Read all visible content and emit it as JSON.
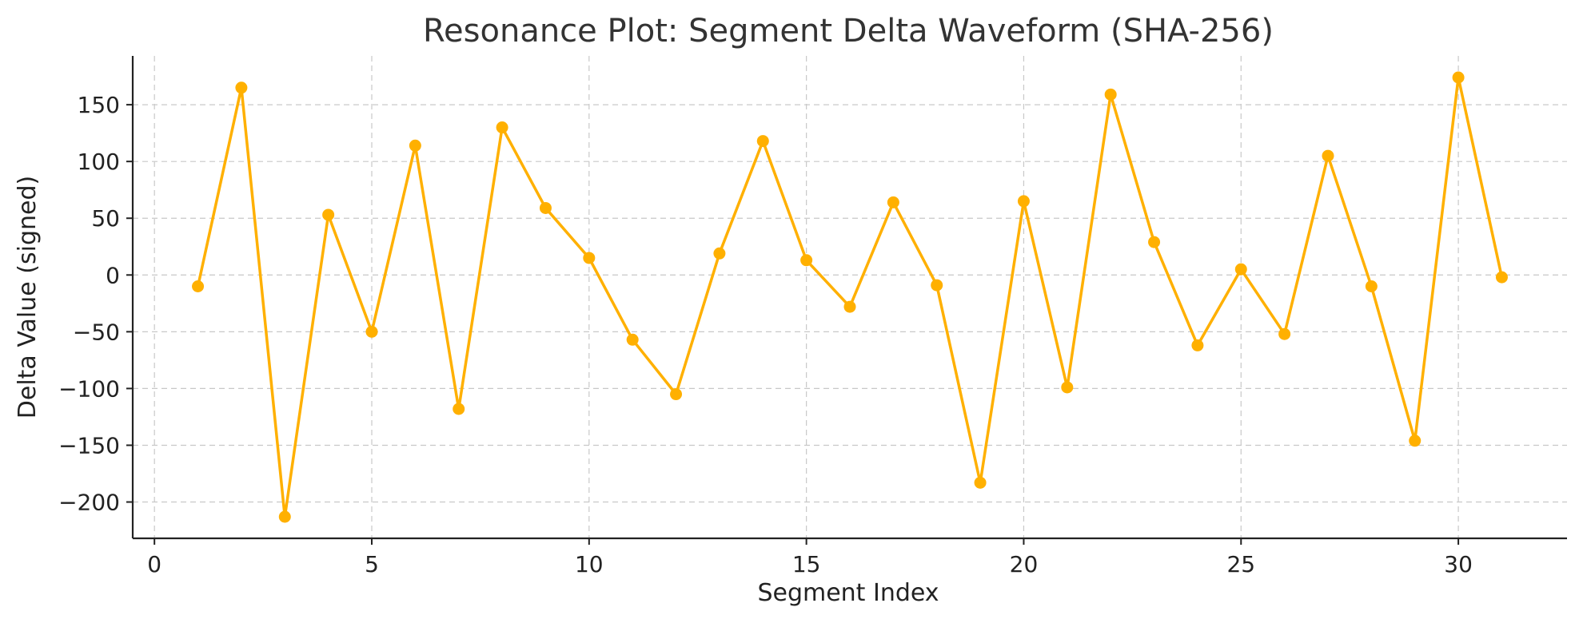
{
  "chart_data": {
    "type": "line",
    "title": "Resonance Plot: Segment Delta Waveform (SHA-256)",
    "xlabel": "Segment Index",
    "ylabel": "Delta Value (signed)",
    "xlim": [
      -0.5,
      32.5
    ],
    "ylim": [
      -232,
      193
    ],
    "xticks": [
      0,
      5,
      10,
      15,
      20,
      25,
      30
    ],
    "xtick_labels": [
      "0",
      "5",
      "10",
      "15",
      "20",
      "25",
      "30"
    ],
    "yticks": [
      150,
      100,
      50,
      0,
      -50,
      -100,
      -150,
      -200
    ],
    "ytick_labels": [
      "150",
      "100",
      "50",
      "0",
      "−50",
      "−100",
      "−150",
      "−200"
    ],
    "grid": true,
    "color": "#FFB000",
    "series": [
      {
        "x": [
          1,
          2,
          3,
          4,
          5,
          6,
          7,
          8,
          9,
          10,
          11,
          12,
          13,
          14,
          15,
          16,
          17,
          18,
          19,
          20,
          21,
          22,
          23,
          24,
          25,
          26,
          27,
          28,
          29,
          30,
          31
        ],
        "values": [
          -10,
          165,
          -213,
          53,
          -50,
          114,
          -118,
          130,
          59,
          15,
          -57,
          -105,
          19,
          118,
          13,
          -28,
          64,
          -9,
          -183,
          65,
          -99,
          159,
          29,
          -62,
          5,
          -52,
          105,
          -10,
          -146,
          174,
          -2
        ]
      }
    ]
  }
}
